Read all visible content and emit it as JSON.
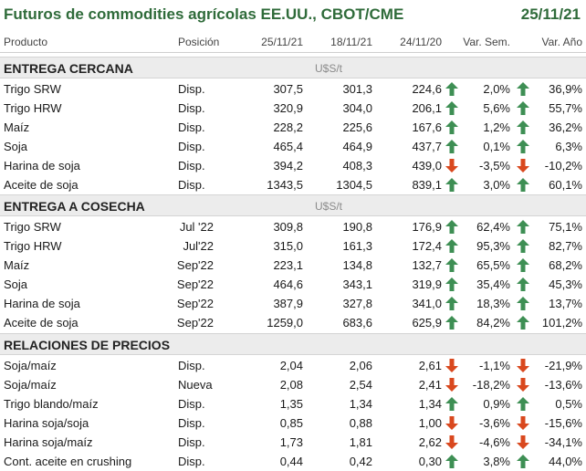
{
  "header": {
    "title": "Futuros de commodities agrícolas EE.UU., CBOT/CME",
    "date": "25/11/21"
  },
  "columns": {
    "product": "Producto",
    "position": "Posición",
    "d1": "25/11/21",
    "d2": "18/11/21",
    "d3": "24/11/20",
    "week": "Var. Sem.",
    "year": "Var. Año"
  },
  "colors": {
    "up": "#3e8f54",
    "down": "#d9481e",
    "title": "#2f6b3a"
  },
  "sections": [
    {
      "label": "ENTREGA CERCANA",
      "unit": "U$S/t",
      "align_pos": "left",
      "rows": [
        {
          "product": "Trigo SRW",
          "position": "Disp.",
          "v1": "307,5",
          "v2": "301,3",
          "v3": "224,6",
          "wdir": "up",
          "week": "2,0%",
          "ydir": "up",
          "year": "36,9%"
        },
        {
          "product": "Trigo HRW",
          "position": "Disp.",
          "v1": "320,9",
          "v2": "304,0",
          "v3": "206,1",
          "wdir": "up",
          "week": "5,6%",
          "ydir": "up",
          "year": "55,7%"
        },
        {
          "product": "Maíz",
          "position": "Disp.",
          "v1": "228,2",
          "v2": "225,6",
          "v3": "167,6",
          "wdir": "up",
          "week": "1,2%",
          "ydir": "up",
          "year": "36,2%"
        },
        {
          "product": "Soja",
          "position": "Disp.",
          "v1": "465,4",
          "v2": "464,9",
          "v3": "437,7",
          "wdir": "up",
          "week": "0,1%",
          "ydir": "up",
          "year": "6,3%"
        },
        {
          "product": "Harina de soja",
          "position": "Disp.",
          "v1": "394,2",
          "v2": "408,3",
          "v3": "439,0",
          "wdir": "down",
          "week": "-3,5%",
          "ydir": "down",
          "year": "-10,2%"
        },
        {
          "product": "Aceite de soja",
          "position": "Disp.",
          "v1": "1343,5",
          "v2": "1304,5",
          "v3": "839,1",
          "wdir": "up",
          "week": "3,0%",
          "ydir": "up",
          "year": "60,1%"
        }
      ]
    },
    {
      "label": "ENTREGA A COSECHA",
      "unit": "U$S/t",
      "align_pos": "right",
      "rows": [
        {
          "product": "Trigo SRW",
          "position": "Jul '22",
          "v1": "309,8",
          "v2": "190,8",
          "v3": "176,9",
          "wdir": "up",
          "week": "62,4%",
          "ydir": "up",
          "year": "75,1%"
        },
        {
          "product": "Trigo HRW",
          "position": "Jul'22",
          "v1": "315,0",
          "v2": "161,3",
          "v3": "172,4",
          "wdir": "up",
          "week": "95,3%",
          "ydir": "up",
          "year": "82,7%"
        },
        {
          "product": "Maíz",
          "position": "Sep'22",
          "v1": "223,1",
          "v2": "134,8",
          "v3": "132,7",
          "wdir": "up",
          "week": "65,5%",
          "ydir": "up",
          "year": "68,2%"
        },
        {
          "product": "Soja",
          "position": "Sep'22",
          "v1": "464,6",
          "v2": "343,1",
          "v3": "319,9",
          "wdir": "up",
          "week": "35,4%",
          "ydir": "up",
          "year": "45,3%"
        },
        {
          "product": "Harina de soja",
          "position": "Sep'22",
          "v1": "387,9",
          "v2": "327,8",
          "v3": "341,0",
          "wdir": "up",
          "week": "18,3%",
          "ydir": "up",
          "year": "13,7%"
        },
        {
          "product": "Aceite de soja",
          "position": "Sep'22",
          "v1": "1259,0",
          "v2": "683,6",
          "v3": "625,9",
          "wdir": "up",
          "week": "84,2%",
          "ydir": "up",
          "year": "101,2%"
        }
      ]
    },
    {
      "label": "RELACIONES DE PRECIOS",
      "unit": "",
      "align_pos": "left",
      "rows": [
        {
          "product": "Soja/maíz",
          "position": "Disp.",
          "v1": "2,04",
          "v2": "2,06",
          "v3": "2,61",
          "wdir": "down",
          "week": "-1,1%",
          "ydir": "down",
          "year": "-21,9%"
        },
        {
          "product": "Soja/maíz",
          "position": "Nueva",
          "v1": "2,08",
          "v2": "2,54",
          "v3": "2,41",
          "wdir": "down",
          "week": "-18,2%",
          "ydir": "down",
          "year": "-13,6%"
        },
        {
          "product": "Trigo blando/maíz",
          "position": "Disp.",
          "v1": "1,35",
          "v2": "1,34",
          "v3": "1,34",
          "wdir": "up",
          "week": "0,9%",
          "ydir": "up",
          "year": "0,5%"
        },
        {
          "product": "Harina soja/soja",
          "position": "Disp.",
          "v1": "0,85",
          "v2": "0,88",
          "v3": "1,00",
          "wdir": "down",
          "week": "-3,6%",
          "ydir": "down",
          "year": "-15,6%"
        },
        {
          "product": "Harina soja/maíz",
          "position": "Disp.",
          "v1": "1,73",
          "v2": "1,81",
          "v3": "2,62",
          "wdir": "down",
          "week": "-4,6%",
          "ydir": "down",
          "year": "-34,1%"
        },
        {
          "product": "Cont. aceite en crushing",
          "position": "Disp.",
          "v1": "0,44",
          "v2": "0,42",
          "v3": "0,30",
          "wdir": "up",
          "week": "3,8%",
          "ydir": "up",
          "year": "44,0%"
        }
      ]
    }
  ]
}
